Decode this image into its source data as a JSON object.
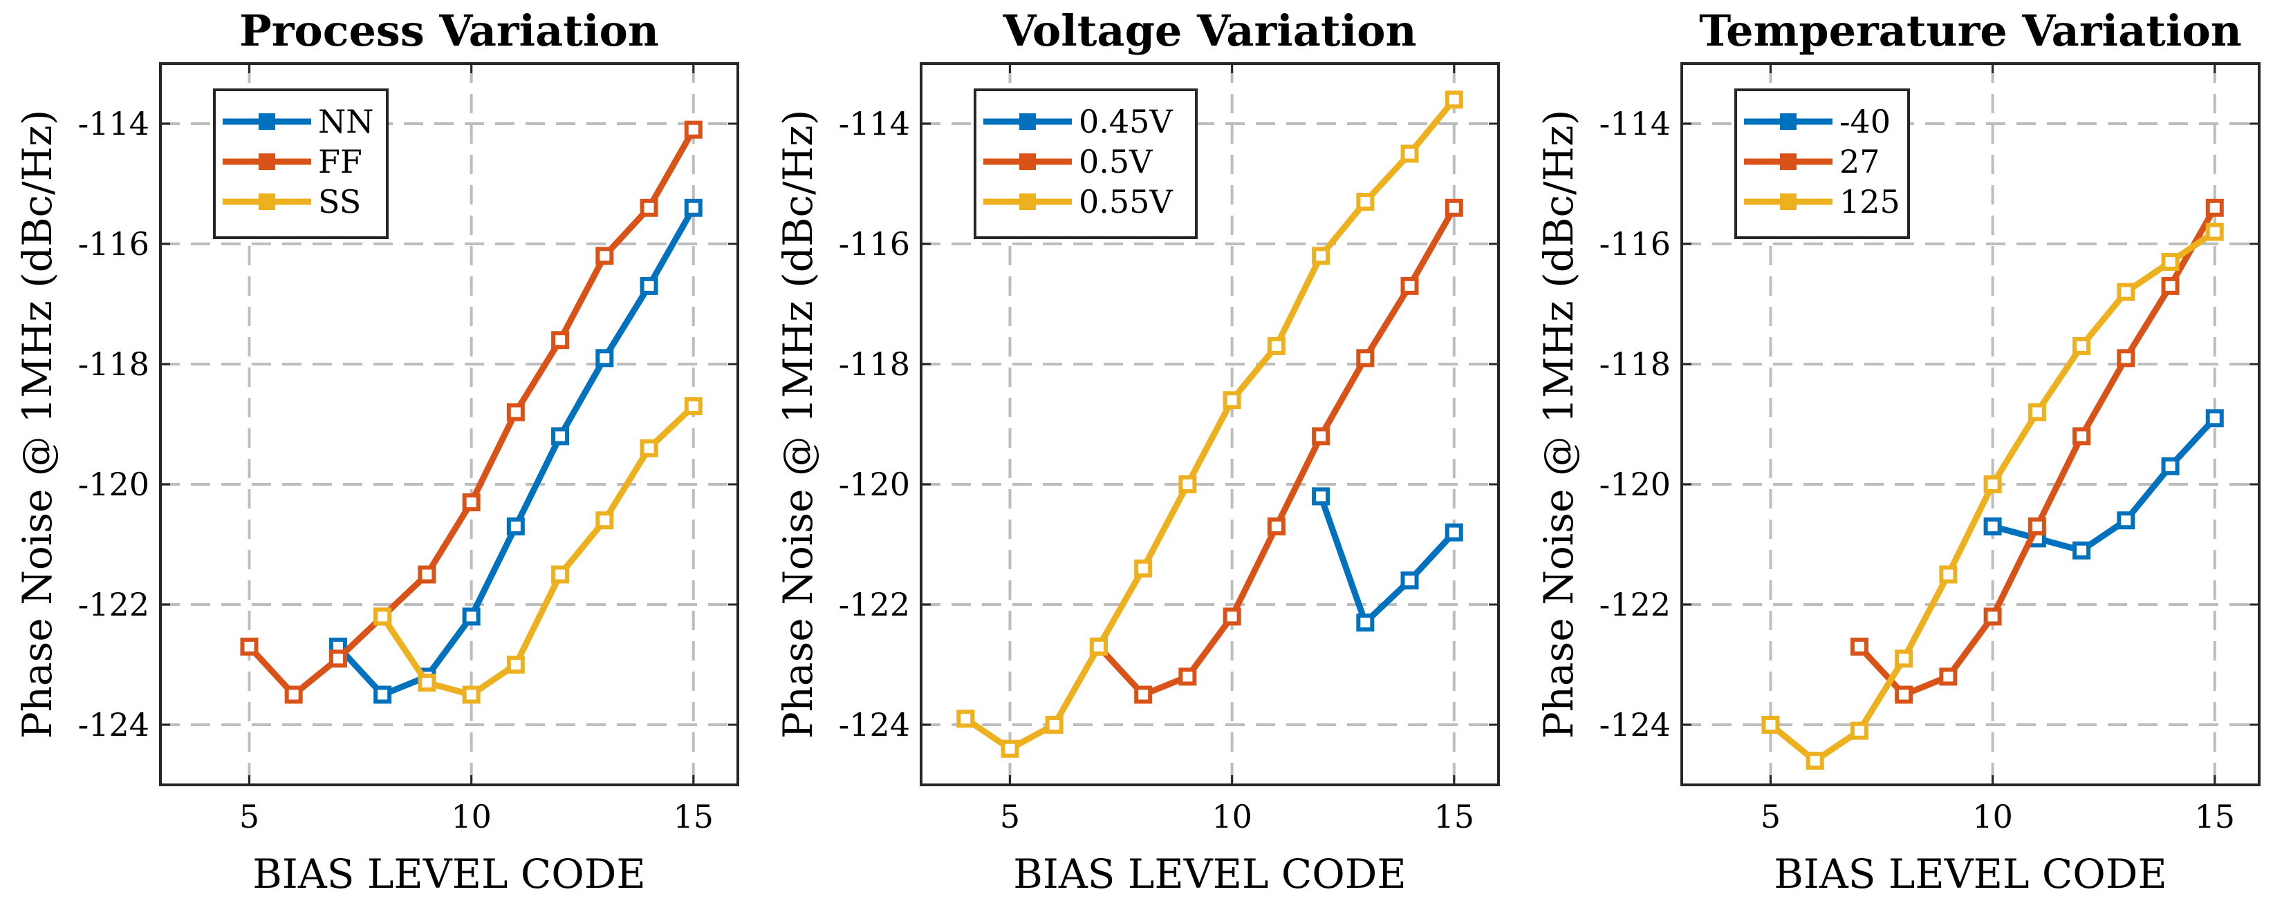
{
  "chart_data": [
    {
      "type": "line",
      "title": "Process Variation",
      "xlabel": "BIAS LEVEL CODE",
      "ylabel": "Phase Noise @ 1MHz (dBc/Hz)",
      "xlim": [
        3,
        16
      ],
      "ylim": [
        -125,
        -113
      ],
      "xticks": [
        5,
        10,
        15
      ],
      "yticks": [
        -114,
        -116,
        -118,
        -120,
        -122,
        -124
      ],
      "grid": true,
      "legend": "top-left",
      "series": [
        {
          "name": "NN",
          "color": "#0072BD",
          "x": [
            7,
            8,
            9,
            10,
            11,
            12,
            13,
            14,
            15
          ],
          "y": [
            -122.7,
            -123.5,
            -123.2,
            -122.2,
            -120.7,
            -119.2,
            -117.9,
            -116.7,
            -115.4
          ]
        },
        {
          "name": "FF",
          "color": "#D95319",
          "x": [
            5,
            6,
            7,
            8,
            9,
            10,
            11,
            12,
            13,
            14,
            15
          ],
          "y": [
            -122.7,
            -123.5,
            -122.9,
            -122.2,
            -121.5,
            -120.3,
            -118.8,
            -117.6,
            -116.2,
            -115.4,
            -114.1
          ]
        },
        {
          "name": "SS",
          "color": "#EDB120",
          "x": [
            8,
            9,
            10,
            11,
            12,
            13,
            14,
            15
          ],
          "y": [
            -122.2,
            -123.3,
            -123.5,
            -123.0,
            -121.5,
            -120.6,
            -119.4,
            -118.7
          ]
        }
      ]
    },
    {
      "type": "line",
      "title": "Voltage Variation",
      "xlabel": "BIAS LEVEL CODE",
      "ylabel": "Phase Noise @ 1MHz (dBc/Hz)",
      "xlim": [
        3,
        16
      ],
      "ylim": [
        -125,
        -113
      ],
      "xticks": [
        5,
        10,
        15
      ],
      "yticks": [
        -114,
        -116,
        -118,
        -120,
        -122,
        -124
      ],
      "grid": true,
      "legend": "top-left",
      "series": [
        {
          "name": "0.45V",
          "color": "#0072BD",
          "x": [
            12,
            13,
            14,
            15
          ],
          "y": [
            -120.2,
            -122.3,
            -121.6,
            -120.8
          ]
        },
        {
          "name": "0.5V",
          "color": "#D95319",
          "x": [
            7,
            8,
            9,
            10,
            11,
            12,
            13,
            14,
            15
          ],
          "y": [
            -122.7,
            -123.5,
            -123.2,
            -122.2,
            -120.7,
            -119.2,
            -117.9,
            -116.7,
            -115.4
          ]
        },
        {
          "name": "0.55V",
          "color": "#EDB120",
          "x": [
            4,
            5,
            6,
            7,
            8,
            9,
            10,
            11,
            12,
            13,
            14,
            15
          ],
          "y": [
            -123.9,
            -124.4,
            -124.0,
            -122.7,
            -121.4,
            -120.0,
            -118.6,
            -117.7,
            -116.2,
            -115.3,
            -114.5,
            -113.6
          ]
        }
      ]
    },
    {
      "type": "line",
      "title": "Temperature Variation",
      "xlabel": "BIAS LEVEL CODE",
      "ylabel": "Phase Noise @ 1MHz (dBc/Hz)",
      "xlim": [
        3,
        16
      ],
      "ylim": [
        -125,
        -113
      ],
      "xticks": [
        5,
        10,
        15
      ],
      "yticks": [
        -114,
        -116,
        -118,
        -120,
        -122,
        -124
      ],
      "grid": true,
      "legend": "top-left",
      "series": [
        {
          "name": "-40",
          "color": "#0072BD",
          "x": [
            10,
            11,
            12,
            13,
            14,
            15
          ],
          "y": [
            -120.7,
            -120.9,
            -121.1,
            -120.6,
            -119.7,
            -118.9
          ]
        },
        {
          "name": "27",
          "color": "#D95319",
          "x": [
            7,
            8,
            9,
            10,
            11,
            12,
            13,
            14,
            15
          ],
          "y": [
            -122.7,
            -123.5,
            -123.2,
            -122.2,
            -120.7,
            -119.2,
            -117.9,
            -116.7,
            -115.4
          ]
        },
        {
          "name": "125",
          "color": "#EDB120",
          "x": [
            5,
            6,
            7,
            8,
            9,
            10,
            11,
            12,
            13,
            14,
            15
          ],
          "y": [
            -124.0,
            -124.6,
            -124.1,
            -122.9,
            -121.5,
            -120.0,
            -118.8,
            -117.7,
            -116.8,
            -116.3,
            -115.8
          ]
        }
      ]
    }
  ]
}
